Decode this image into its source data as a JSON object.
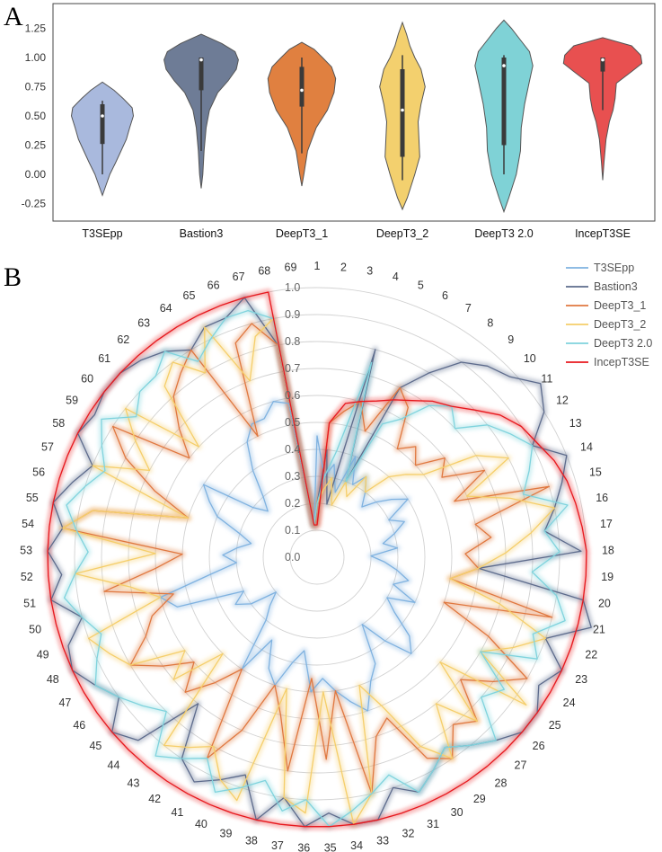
{
  "panel_labels": [
    "A",
    "B"
  ],
  "chart_data": [
    {
      "type": "violin",
      "panel": "A",
      "ylim": [
        -0.3,
        1.38
      ],
      "yticks": [
        "1.25",
        "1.00",
        "0.75",
        "0.50",
        "0.25",
        "0.00",
        "-0.25"
      ],
      "ytick_values": [
        1.25,
        1.0,
        0.75,
        0.5,
        0.25,
        0.0,
        -0.25
      ],
      "grid": false,
      "categories": [
        "T3SEpp",
        "Bastion3",
        "DeepT3_1",
        "DeepT3_2",
        "DeepT3 2.0",
        "IncepT3SE"
      ],
      "colors": [
        "#A9B9DD",
        "#6E7C96",
        "#E08040",
        "#F3D06E",
        "#7FD2D6",
        "#E85050"
      ],
      "violins": [
        {
          "min": -0.18,
          "max": 0.79,
          "q1": 0.26,
          "median": 0.5,
          "q3": 0.6,
          "whisker_lo": 0.0,
          "whisker_hi": 0.63,
          "profile": [
            [
              -0.18,
              0.0
            ],
            [
              -0.1,
              0.08
            ],
            [
              0.0,
              0.18
            ],
            [
              0.1,
              0.32
            ],
            [
              0.2,
              0.45
            ],
            [
              0.3,
              0.58
            ],
            [
              0.4,
              0.66
            ],
            [
              0.5,
              0.75
            ],
            [
              0.57,
              0.72
            ],
            [
              0.65,
              0.5
            ],
            [
              0.72,
              0.28
            ],
            [
              0.79,
              0.0
            ]
          ]
        },
        {
          "min": -0.12,
          "max": 1.2,
          "q1": 0.72,
          "median": 0.98,
          "q3": 1.0,
          "whisker_lo": 0.2,
          "whisker_hi": 1.0,
          "profile": [
            [
              -0.12,
              0.0
            ],
            [
              0.0,
              0.04
            ],
            [
              0.2,
              0.07
            ],
            [
              0.4,
              0.12
            ],
            [
              0.55,
              0.2
            ],
            [
              0.7,
              0.4
            ],
            [
              0.8,
              0.65
            ],
            [
              0.9,
              0.85
            ],
            [
              0.98,
              0.9
            ],
            [
              1.05,
              0.82
            ],
            [
              1.12,
              0.5
            ],
            [
              1.2,
              0.0
            ]
          ]
        },
        {
          "min": -0.1,
          "max": 1.13,
          "q1": 0.58,
          "median": 0.72,
          "q3": 0.92,
          "whisker_lo": 0.18,
          "whisker_hi": 1.0,
          "profile": [
            [
              -0.1,
              0.0
            ],
            [
              0.0,
              0.05
            ],
            [
              0.2,
              0.14
            ],
            [
              0.4,
              0.35
            ],
            [
              0.55,
              0.62
            ],
            [
              0.7,
              0.78
            ],
            [
              0.82,
              0.82
            ],
            [
              0.92,
              0.72
            ],
            [
              1.0,
              0.5
            ],
            [
              1.07,
              0.3
            ],
            [
              1.13,
              0.0
            ]
          ]
        },
        {
          "min": -0.3,
          "max": 1.3,
          "q1": 0.15,
          "median": 0.55,
          "q3": 0.9,
          "whisker_lo": -0.05,
          "whisker_hi": 1.02,
          "profile": [
            [
              -0.3,
              0.0
            ],
            [
              -0.2,
              0.12
            ],
            [
              0.0,
              0.3
            ],
            [
              0.15,
              0.42
            ],
            [
              0.3,
              0.4
            ],
            [
              0.45,
              0.38
            ],
            [
              0.6,
              0.45
            ],
            [
              0.75,
              0.55
            ],
            [
              0.9,
              0.45
            ],
            [
              1.0,
              0.3
            ],
            [
              1.1,
              0.18
            ],
            [
              1.2,
              0.1
            ],
            [
              1.3,
              0.0
            ]
          ]
        },
        {
          "min": -0.32,
          "max": 1.32,
          "q1": 0.25,
          "median": 0.93,
          "q3": 1.0,
          "whisker_lo": 0.0,
          "whisker_hi": 1.02,
          "profile": [
            [
              -0.32,
              0.0
            ],
            [
              -0.2,
              0.12
            ],
            [
              0.0,
              0.3
            ],
            [
              0.2,
              0.4
            ],
            [
              0.4,
              0.42
            ],
            [
              0.6,
              0.5
            ],
            [
              0.8,
              0.62
            ],
            [
              0.93,
              0.7
            ],
            [
              1.05,
              0.62
            ],
            [
              1.15,
              0.4
            ],
            [
              1.25,
              0.18
            ],
            [
              1.32,
              0.0
            ]
          ]
        },
        {
          "min": -0.05,
          "max": 1.17,
          "q1": 0.88,
          "median": 0.98,
          "q3": 1.0,
          "whisker_lo": 0.55,
          "whisker_hi": 1.0,
          "profile": [
            [
              -0.05,
              0.0
            ],
            [
              0.1,
              0.03
            ],
            [
              0.3,
              0.08
            ],
            [
              0.45,
              0.16
            ],
            [
              0.55,
              0.25
            ],
            [
              0.65,
              0.3
            ],
            [
              0.78,
              0.33
            ],
            [
              0.88,
              0.7
            ],
            [
              0.95,
              0.95
            ],
            [
              1.02,
              0.92
            ],
            [
              1.1,
              0.7
            ],
            [
              1.17,
              0.0
            ]
          ]
        }
      ]
    },
    {
      "type": "radar",
      "panel": "B",
      "spokes": [
        "1",
        "2",
        "3",
        "4",
        "5",
        "6",
        "7",
        "8",
        "9",
        "10",
        "11",
        "12",
        "13",
        "14",
        "15",
        "16",
        "17",
        "18",
        "19",
        "20",
        "21",
        "22",
        "23",
        "24",
        "25",
        "26",
        "27",
        "28",
        "29",
        "30",
        "31",
        "32",
        "33",
        "34",
        "35",
        "36",
        "37",
        "38",
        "39",
        "40",
        "41",
        "42",
        "43",
        "44",
        "45",
        "46",
        "47",
        "48",
        "49",
        "50",
        "51",
        "52",
        "53",
        "54",
        "55",
        "56",
        "57",
        "58",
        "59",
        "60",
        "61",
        "62",
        "63",
        "64",
        "65",
        "66",
        "67",
        "68",
        "69"
      ],
      "rlim": [
        0,
        1.0
      ],
      "rticks": [
        "0.0",
        "0.1",
        "0.2",
        "0.3",
        "0.4",
        "0.5",
        "0.6",
        "0.7",
        "0.8",
        "0.9",
        "1.0"
      ],
      "legend_position": "top-right",
      "series": [
        {
          "name": "T3SEpp",
          "color": "#7FB2E0",
          "values": [
            0.45,
            0.3,
            0.35,
            0.25,
            0.4,
            0.3,
            0.35,
            0.3,
            0.25,
            0.3,
            0.35,
            0.4,
            0.3,
            0.35,
            0.3,
            0.25,
            0.3,
            0.2,
            0.25,
            0.3,
            0.35,
            0.3,
            0.4,
            0.3,
            0.35,
            0.45,
            0.5,
            0.4,
            0.3,
            0.45,
            0.5,
            0.6,
            0.55,
            0.5,
            0.45,
            0.5,
            0.35,
            0.4,
            0.5,
            0.45,
            0.35,
            0.5,
            0.3,
            0.25,
            0.2,
            0.3,
            0.35,
            0.3,
            0.55,
            0.6,
            0.4,
            0.3,
            0.35,
            0.3,
            0.25,
            0.3,
            0.4,
            0.45,
            0.5,
            0.3,
            0.25,
            0.3,
            0.4,
            0.5,
            0.55,
            0.55,
            0.6,
            0.58,
            0.12
          ]
        },
        {
          "name": "Bastion3",
          "color": "#5D6B8C",
          "values": [
            0.2,
            0.4,
            0.2,
            0.8,
            0.3,
            0.7,
            0.8,
            0.9,
            0.95,
            0.98,
            1.05,
            1.0,
            0.9,
            1.0,
            0.95,
            0.9,
            0.85,
            0.98,
            0.6,
            1.0,
            1.05,
            0.9,
            1.0,
            0.95,
            1.0,
            1.0,
            0.95,
            0.9,
            0.85,
            0.9,
            0.95,
            0.9,
            1.0,
            1.0,
            0.95,
            1.0,
            0.9,
            1.0,
            0.85,
            0.9,
            0.95,
            0.9,
            0.7,
            0.95,
            1.0,
            0.9,
            0.95,
            1.0,
            0.98,
            0.9,
            1.0,
            0.95,
            1.0,
            0.95,
            1.0,
            0.95,
            0.9,
            1.0,
            0.98,
            1.0,
            1.0,
            0.98,
            0.95,
            0.9,
            0.95,
            0.95,
            1.0,
            0.8,
            0.12
          ]
        },
        {
          "name": "DeepT3_1",
          "color": "#E07840",
          "values": [
            0.12,
            0.5,
            0.55,
            0.6,
            0.5,
            0.7,
            0.65,
            0.5,
            0.55,
            0.5,
            0.6,
            0.55,
            0.7,
            0.55,
            0.9,
            0.6,
            0.65,
            0.55,
            0.6,
            0.5,
            0.9,
            0.5,
            0.7,
            0.9,
            0.8,
            0.7,
            0.85,
            0.8,
            0.9,
            0.85,
            0.65,
            0.7,
            0.9,
            0.5,
            0.75,
            0.45,
            0.8,
            0.6,
            0.5,
            0.7,
            0.85,
            0.5,
            0.6,
            0.7,
            0.6,
            0.7,
            0.8,
            0.7,
            0.65,
            0.55,
            0.8,
            0.6,
            0.5,
            0.95,
            0.85,
            0.5,
            0.65,
            0.8,
            0.9,
            0.6,
            0.7,
            0.8,
            0.85,
            0.9,
            0.5,
            0.85,
            0.9,
            0.8,
            0.12
          ]
        },
        {
          "name": "DeepT3_2",
          "color": "#F5CE6A",
          "values": [
            0.2,
            0.25,
            0.3,
            0.2,
            0.3,
            0.25,
            0.35,
            0.3,
            0.4,
            0.45,
            0.5,
            0.7,
            0.8,
            0.6,
            0.75,
            0.9,
            0.8,
            0.7,
            0.6,
            0.5,
            0.7,
            0.9,
            0.8,
            0.7,
            0.95,
            0.6,
            0.85,
            0.7,
            0.9,
            0.8,
            0.6,
            0.5,
            0.9,
            1.0,
            0.5,
            0.95,
            0.9,
            0.5,
            0.95,
            0.9,
            0.8,
            0.85,
            0.9,
            0.5,
            0.7,
            0.6,
            0.8,
            0.85,
            0.9,
            0.6,
            0.7,
            0.9,
            0.6,
            0.95,
            0.85,
            0.5,
            0.9,
            0.7,
            0.8,
            0.9,
            0.6,
            0.85,
            0.9,
            0.8,
            0.95,
            0.7,
            0.85,
            0.9,
            0.12
          ]
        },
        {
          "name": "DeepT3 2.0",
          "color": "#7FD3DD",
          "values": [
            0.2,
            0.3,
            0.4,
            0.75,
            0.3,
            0.55,
            0.6,
            0.7,
            0.75,
            0.7,
            0.8,
            0.85,
            0.9,
            0.85,
            0.8,
            0.95,
            0.85,
            0.9,
            0.8,
            0.9,
            0.95,
            0.85,
            0.9,
            0.7,
            0.85,
            0.8,
            0.95,
            0.9,
            0.85,
            0.9,
            0.95,
            0.85,
            0.9,
            0.95,
            1.0,
            0.9,
            0.95,
            0.85,
            0.9,
            0.95,
            0.85,
            0.9,
            0.95,
            0.8,
            0.85,
            0.9,
            0.95,
            0.9,
            0.85,
            0.9,
            0.95,
            0.9,
            0.85,
            0.9,
            0.95,
            0.9,
            0.85,
            0.9,
            0.95,
            0.85,
            0.9,
            0.9,
            0.95,
            0.85,
            0.9,
            0.95,
            0.95,
            0.9,
            0.12
          ]
        },
        {
          "name": "IncepT3SE",
          "color": "#E8181E",
          "values": [
            0.12,
            0.5,
            0.58,
            0.6,
            0.62,
            0.65,
            0.68,
            0.72,
            0.75,
            0.8,
            0.86,
            0.9,
            0.92,
            0.95,
            0.97,
            0.98,
            0.99,
            1.0,
            1.0,
            1.0,
            1.0,
            1.0,
            1.0,
            1.0,
            1.0,
            1.0,
            1.0,
            1.0,
            1.0,
            1.0,
            1.0,
            1.0,
            1.0,
            1.0,
            1.0,
            1.0,
            1.0,
            1.0,
            1.0,
            1.0,
            1.0,
            1.0,
            1.0,
            1.0,
            1.0,
            1.0,
            1.0,
            1.0,
            1.0,
            1.0,
            1.0,
            1.0,
            1.0,
            1.0,
            1.0,
            1.0,
            1.0,
            1.0,
            1.0,
            1.0,
            1.0,
            1.0,
            1.0,
            1.0,
            1.0,
            1.0,
            1.0,
            1.0,
            0.12
          ]
        }
      ]
    }
  ]
}
